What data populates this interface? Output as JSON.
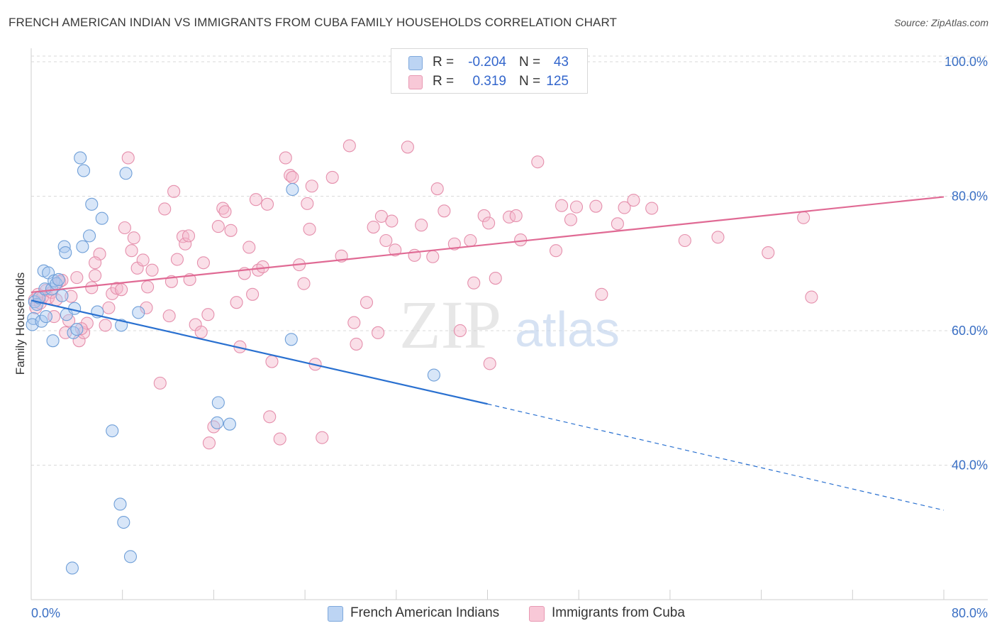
{
  "title": "FRENCH AMERICAN INDIAN VS IMMIGRANTS FROM CUBA FAMILY HOUSEHOLDS CORRELATION CHART",
  "source": "Source: ZipAtlas.com",
  "watermark": {
    "zip": "ZIP",
    "atlas": "atlas"
  },
  "legend": {
    "series1": {
      "r_label": "R =",
      "r_value": "-0.204",
      "n_label": "N =",
      "n_value": "43"
    },
    "series2": {
      "r_label": "R =",
      "r_value": "0.319",
      "n_label": "N =",
      "n_value": "125"
    }
  },
  "bottom_legend": {
    "series1": "French American Indians",
    "series2": "Immigrants from Cuba"
  },
  "colors": {
    "blue_fill": "#a9c8f0",
    "blue_stroke": "#6f9fd8",
    "blue_line": "#2970d0",
    "pink_fill": "#f5b8cb",
    "pink_stroke": "#e58fac",
    "pink_line": "#e06a94",
    "axis_text": "#3a6fc4",
    "grid": "#d9d9d9"
  },
  "chart_data": {
    "type": "scatter",
    "title": "FRENCH AMERICAN INDIAN VS IMMIGRANTS FROM CUBA FAMILY HOUSEHOLDS CORRELATION CHART",
    "xlabel": "",
    "ylabel": "Family Households",
    "xlim": [
      0,
      80
    ],
    "ylim": [
      20,
      102
    ],
    "x_tick_labels": [
      {
        "value": 0,
        "label": "0.0%"
      },
      {
        "value": 80,
        "label": "80.0%"
      }
    ],
    "y_tick_labels": [
      {
        "value": 100,
        "label": "100.0%"
      },
      {
        "value": 80,
        "label": "80.0%"
      },
      {
        "value": 60,
        "label": "60.0%"
      },
      {
        "value": 40,
        "label": "40.0%"
      }
    ],
    "y_gridlines": [
      100,
      80,
      60,
      40
    ],
    "x_minor_ticks": [
      0,
      8,
      16,
      24,
      32,
      40,
      48,
      56,
      64,
      72,
      80
    ],
    "series": [
      {
        "name": "French American Indians",
        "color": "#a9c8f0",
        "trend": {
          "x0": 0,
          "y0": 64.5,
          "x1": 40,
          "y1": 49.1,
          "dash_to_x": 80,
          "dash_to_y": 33.3
        },
        "points": [
          [
            0.3,
            64.3
          ],
          [
            0.5,
            63.9
          ],
          [
            0.2,
            61.8
          ],
          [
            0.1,
            60.9
          ],
          [
            0.9,
            61.4
          ],
          [
            0.7,
            64.9
          ],
          [
            1.1,
            68.9
          ],
          [
            1.2,
            66.2
          ],
          [
            1.5,
            68.6
          ],
          [
            1.8,
            66.2
          ],
          [
            2.0,
            67.4
          ],
          [
            2.2,
            67.0
          ],
          [
            2.4,
            67.6
          ],
          [
            2.7,
            65.2
          ],
          [
            1.3,
            62.1
          ],
          [
            1.9,
            58.5
          ],
          [
            2.9,
            72.5
          ],
          [
            3.0,
            71.6
          ],
          [
            3.1,
            62.4
          ],
          [
            3.7,
            59.7
          ],
          [
            3.8,
            63.3
          ],
          [
            4.0,
            60.2
          ],
          [
            4.5,
            72.5
          ],
          [
            5.1,
            74.1
          ],
          [
            5.3,
            78.8
          ],
          [
            4.3,
            85.7
          ],
          [
            4.6,
            83.8
          ],
          [
            6.2,
            76.7
          ],
          [
            5.8,
            62.8
          ],
          [
            8.3,
            83.4
          ],
          [
            7.9,
            60.8
          ],
          [
            9.4,
            62.7
          ],
          [
            7.1,
            45.1
          ],
          [
            7.8,
            34.2
          ],
          [
            8.1,
            31.5
          ],
          [
            8.7,
            26.4
          ],
          [
            3.6,
            24.7
          ],
          [
            16.4,
            49.3
          ],
          [
            16.3,
            46.3
          ],
          [
            17.4,
            46.1
          ],
          [
            22.9,
            81.0
          ],
          [
            22.8,
            58.7
          ],
          [
            35.3,
            53.4
          ]
        ]
      },
      {
        "name": "Immigrants from Cuba",
        "color": "#f5b8cb",
        "trend": {
          "x0": 0,
          "y0": 65.7,
          "x1": 80,
          "y1": 79.9
        },
        "points": [
          [
            0.3,
            64.6
          ],
          [
            0.4,
            63.4
          ],
          [
            0.6,
            65.4
          ],
          [
            0.8,
            64.1
          ],
          [
            1.0,
            65.0
          ],
          [
            1.3,
            66.0
          ],
          [
            1.5,
            64.9
          ],
          [
            1.8,
            65.7
          ],
          [
            2.0,
            62.1
          ],
          [
            2.2,
            64.6
          ],
          [
            2.5,
            67.3
          ],
          [
            2.7,
            67.5
          ],
          [
            3.0,
            59.7
          ],
          [
            3.3,
            61.5
          ],
          [
            3.5,
            65.1
          ],
          [
            4.0,
            67.9
          ],
          [
            4.2,
            58.5
          ],
          [
            4.6,
            59.7
          ],
          [
            4.9,
            61.1
          ],
          [
            4.4,
            60.3
          ],
          [
            5.3,
            66.4
          ],
          [
            5.6,
            68.2
          ],
          [
            6.0,
            71.4
          ],
          [
            5.6,
            70.1
          ],
          [
            6.5,
            60.8
          ],
          [
            6.8,
            63.4
          ],
          [
            7.1,
            65.5
          ],
          [
            7.5,
            66.3
          ],
          [
            7.9,
            66.1
          ],
          [
            8.2,
            75.3
          ],
          [
            8.5,
            85.7
          ],
          [
            8.8,
            71.9
          ],
          [
            9.0,
            73.8
          ],
          [
            9.3,
            69.3
          ],
          [
            9.8,
            70.5
          ],
          [
            10.2,
            66.5
          ],
          [
            10.6,
            69.0
          ],
          [
            10.1,
            63.4
          ],
          [
            11.3,
            52.2
          ],
          [
            11.7,
            78.1
          ],
          [
            12.1,
            62.2
          ],
          [
            12.3,
            67.3
          ],
          [
            12.5,
            80.7
          ],
          [
            12.8,
            70.6
          ],
          [
            13.3,
            74.0
          ],
          [
            13.5,
            72.9
          ],
          [
            13.8,
            74.1
          ],
          [
            13.9,
            67.6
          ],
          [
            14.4,
            60.9
          ],
          [
            14.9,
            59.8
          ],
          [
            15.1,
            70.1
          ],
          [
            15.5,
            62.4
          ],
          [
            15.6,
            43.3
          ],
          [
            16.0,
            45.7
          ],
          [
            16.4,
            75.5
          ],
          [
            16.8,
            78.2
          ],
          [
            17.0,
            77.7
          ],
          [
            17.5,
            74.9
          ],
          [
            18.0,
            64.2
          ],
          [
            18.3,
            57.6
          ],
          [
            18.7,
            68.5
          ],
          [
            19.1,
            72.4
          ],
          [
            19.4,
            65.4
          ],
          [
            19.7,
            79.5
          ],
          [
            19.9,
            69.0
          ],
          [
            20.3,
            69.5
          ],
          [
            20.7,
            78.8
          ],
          [
            20.9,
            47.2
          ],
          [
            21.1,
            55.4
          ],
          [
            21.8,
            43.9
          ],
          [
            22.3,
            85.7
          ],
          [
            22.7,
            83.1
          ],
          [
            22.9,
            82.8
          ],
          [
            23.5,
            69.8
          ],
          [
            23.9,
            67.0
          ],
          [
            24.2,
            78.9
          ],
          [
            24.4,
            75.1
          ],
          [
            24.6,
            81.5
          ],
          [
            24.9,
            55.0
          ],
          [
            25.5,
            44.1
          ],
          [
            26.4,
            82.8
          ],
          [
            27.2,
            71.1
          ],
          [
            27.9,
            87.5
          ],
          [
            28.3,
            61.2
          ],
          [
            28.5,
            58.0
          ],
          [
            29.4,
            64.2
          ],
          [
            30.0,
            75.4
          ],
          [
            30.4,
            59.7
          ],
          [
            30.7,
            77.0
          ],
          [
            31.1,
            73.4
          ],
          [
            31.6,
            76.3
          ],
          [
            31.9,
            72.0
          ],
          [
            33.0,
            87.3
          ],
          [
            33.6,
            71.2
          ],
          [
            34.2,
            75.7
          ],
          [
            35.2,
            71.0
          ],
          [
            35.6,
            81.1
          ],
          [
            36.2,
            77.8
          ],
          [
            37.1,
            72.9
          ],
          [
            37.6,
            60.0
          ],
          [
            38.5,
            73.4
          ],
          [
            38.8,
            67.1
          ],
          [
            39.7,
            77.1
          ],
          [
            40.1,
            76.0
          ],
          [
            40.2,
            55.1
          ],
          [
            40.7,
            67.8
          ],
          [
            41.9,
            76.9
          ],
          [
            42.5,
            77.1
          ],
          [
            42.9,
            73.5
          ],
          [
            44.4,
            85.1
          ],
          [
            46.0,
            71.9
          ],
          [
            46.5,
            78.6
          ],
          [
            47.3,
            76.5
          ],
          [
            47.8,
            78.4
          ],
          [
            49.5,
            78.5
          ],
          [
            50.0,
            65.4
          ],
          [
            51.4,
            75.9
          ],
          [
            52.0,
            78.3
          ],
          [
            52.8,
            79.4
          ],
          [
            54.4,
            78.2
          ],
          [
            57.3,
            73.4
          ],
          [
            60.2,
            73.9
          ],
          [
            64.6,
            71.6
          ],
          [
            67.7,
            76.8
          ],
          [
            68.4,
            65.0
          ]
        ]
      }
    ]
  }
}
